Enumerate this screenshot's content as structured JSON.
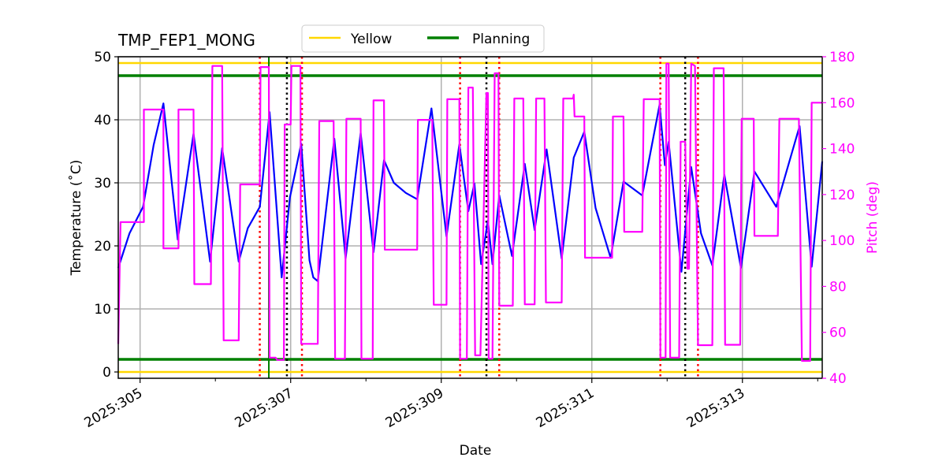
{
  "chart_data": {
    "type": "line",
    "title": "TMP_FEP1_MONG",
    "xlabel": "Date",
    "ylabel": "Temperature ($^\\circ$C)",
    "ylabel_display": "Temperature (˚C)",
    "y2label": "Pitch (deg)",
    "xlim": [
      304.71,
      314.06
    ],
    "ylim": [
      -1,
      50
    ],
    "y2lim": [
      40,
      180
    ],
    "grid": true,
    "legend_placement": "top-center",
    "x_tick_labels": [
      {
        "value": 305,
        "label": "2025:305"
      },
      {
        "value": 307,
        "label": "2025:307"
      },
      {
        "value": 309,
        "label": "2025:309"
      },
      {
        "value": 311,
        "label": "2025:311"
      },
      {
        "value": 313,
        "label": "2025:313"
      }
    ],
    "x_minor_ticks": [
      306,
      308,
      310,
      312,
      314
    ],
    "y_ticks": [
      0,
      10,
      20,
      30,
      40,
      50
    ],
    "y2_ticks": [
      40,
      60,
      80,
      100,
      120,
      140,
      160,
      180
    ],
    "legend": [
      {
        "name": "Yellow",
        "color": "#ffd700"
      },
      {
        "name": "Planning",
        "color": "#008000"
      }
    ],
    "limits": [
      {
        "name": "Yellow",
        "values": [
          49,
          0
        ],
        "color": "#ffd700"
      },
      {
        "name": "Planning",
        "values": [
          47,
          2
        ],
        "color": "#008000"
      }
    ],
    "vertical_lines": {
      "red_dotted": [
        306.59,
        307.15,
        309.25,
        309.77,
        311.91,
        312.41
      ],
      "black_dotted": [
        306.95,
        309.6,
        312.24
      ],
      "green_solid": [
        306.71
      ]
    },
    "colors": {
      "temperature": "#0000ff",
      "pitch": "#ff00ff",
      "red": "#ff0000",
      "black": "#000000",
      "green": "#008000",
      "yellow": "#ffd700",
      "grid": "#b0b0b0"
    },
    "series": [
      {
        "axis": "left",
        "color": "#0000ff",
        "points": [
          [
            304.71,
            16.5
          ],
          [
            304.86,
            22
          ],
          [
            305.04,
            26.2
          ],
          [
            305.18,
            36
          ],
          [
            305.31,
            42.6
          ],
          [
            305.5,
            21
          ],
          [
            305.71,
            37.8
          ],
          [
            305.93,
            17.5
          ],
          [
            306.09,
            35.5
          ],
          [
            306.31,
            17.5
          ],
          [
            306.43,
            22.8
          ],
          [
            306.59,
            26.2
          ],
          [
            306.72,
            41.2
          ],
          [
            306.88,
            15
          ],
          [
            306.99,
            27.7
          ],
          [
            307.14,
            36.2
          ],
          [
            307.25,
            17.7
          ],
          [
            307.3,
            15
          ],
          [
            307.36,
            14.4
          ],
          [
            307.58,
            37
          ],
          [
            307.73,
            18
          ],
          [
            307.93,
            37.9
          ],
          [
            308.1,
            19
          ],
          [
            308.24,
            33.6
          ],
          [
            308.37,
            30
          ],
          [
            308.53,
            28.4
          ],
          [
            308.68,
            27.4
          ],
          [
            308.87,
            41.8
          ],
          [
            309.07,
            21.5
          ],
          [
            309.24,
            36.1
          ],
          [
            309.36,
            25.5
          ],
          [
            309.44,
            29.9
          ],
          [
            309.53,
            17.1
          ],
          [
            309.62,
            24
          ],
          [
            309.68,
            17.1
          ],
          [
            309.77,
            28
          ],
          [
            309.94,
            18.4
          ],
          [
            310.11,
            33
          ],
          [
            310.24,
            22.5
          ],
          [
            310.4,
            35.3
          ],
          [
            310.6,
            18
          ],
          [
            310.76,
            34
          ],
          [
            310.9,
            38.1
          ],
          [
            311.05,
            26
          ],
          [
            311.25,
            18.1
          ],
          [
            311.42,
            30.2
          ],
          [
            311.67,
            28
          ],
          [
            311.9,
            42.4
          ],
          [
            311.97,
            32.8
          ],
          [
            312.02,
            36.5
          ],
          [
            312.19,
            15.9
          ],
          [
            312.32,
            32.5
          ],
          [
            312.45,
            22
          ],
          [
            312.6,
            16.9
          ],
          [
            312.76,
            31.3
          ],
          [
            312.98,
            16.5
          ],
          [
            313.16,
            31.8
          ],
          [
            313.45,
            26.2
          ],
          [
            313.76,
            39
          ],
          [
            313.92,
            16.7
          ],
          [
            314.06,
            33.4
          ]
        ]
      },
      {
        "axis": "right",
        "color": "#ff00ff",
        "points": [
          [
            304.71,
            55
          ],
          [
            304.74,
            108
          ],
          [
            305.05,
            108
          ],
          [
            305.05,
            157
          ],
          [
            305.31,
            157
          ],
          [
            305.31,
            96.6
          ],
          [
            305.51,
            96.6
          ],
          [
            305.51,
            157
          ],
          [
            305.71,
            157
          ],
          [
            305.72,
            81
          ],
          [
            305.94,
            81
          ],
          [
            305.96,
            176
          ],
          [
            306.09,
            176
          ],
          [
            306.11,
            56.5
          ],
          [
            306.31,
            56.5
          ],
          [
            306.33,
            124.4
          ],
          [
            306.59,
            124.4
          ],
          [
            306.6,
            175.5
          ],
          [
            306.71,
            175.5
          ],
          [
            306.72,
            49
          ],
          [
            306.8,
            49
          ],
          [
            306.82,
            48
          ],
          [
            306.91,
            48
          ],
          [
            306.92,
            150.5
          ],
          [
            307.0,
            150.5
          ],
          [
            307.01,
            176
          ],
          [
            307.13,
            176
          ],
          [
            307.14,
            55
          ],
          [
            307.36,
            55
          ],
          [
            307.38,
            152
          ],
          [
            307.57,
            152
          ],
          [
            307.59,
            48.5
          ],
          [
            307.72,
            48.5
          ],
          [
            307.74,
            153
          ],
          [
            307.93,
            153
          ],
          [
            307.94,
            48.5
          ],
          [
            308.09,
            48.5
          ],
          [
            308.1,
            161
          ],
          [
            308.24,
            161
          ],
          [
            308.25,
            96
          ],
          [
            308.68,
            96
          ],
          [
            308.69,
            152.5
          ],
          [
            308.88,
            152.5
          ],
          [
            308.9,
            72
          ],
          [
            309.07,
            72
          ],
          [
            309.08,
            161.5
          ],
          [
            309.24,
            161.5
          ],
          [
            309.25,
            48.5
          ],
          [
            309.34,
            48.5
          ],
          [
            309.36,
            166.6
          ],
          [
            309.42,
            166.6
          ],
          [
            309.45,
            50
          ],
          [
            309.52,
            50
          ],
          [
            309.6,
            164.2
          ],
          [
            309.62,
            164.2
          ],
          [
            309.63,
            48.5
          ],
          [
            309.68,
            48.5
          ],
          [
            309.71,
            172.8
          ],
          [
            309.76,
            172.8
          ],
          [
            309.77,
            71.6
          ],
          [
            309.95,
            71.6
          ],
          [
            309.97,
            161.8
          ],
          [
            310.09,
            161.8
          ],
          [
            310.11,
            72.2
          ],
          [
            310.24,
            72.2
          ],
          [
            310.26,
            161.8
          ],
          [
            310.37,
            161.8
          ],
          [
            310.39,
            73
          ],
          [
            310.6,
            73
          ],
          [
            310.62,
            161.8
          ],
          [
            310.75,
            161.8
          ],
          [
            310.76,
            163.5
          ],
          [
            310.77,
            154
          ],
          [
            310.9,
            154
          ],
          [
            310.91,
            92.5
          ],
          [
            311.27,
            92.5
          ],
          [
            311.28,
            154
          ],
          [
            311.42,
            154
          ],
          [
            311.43,
            103.8
          ],
          [
            311.67,
            103.8
          ],
          [
            311.69,
            161.5
          ],
          [
            311.9,
            161.5
          ],
          [
            311.91,
            49
          ],
          [
            311.98,
            49
          ],
          [
            311.99,
            177
          ],
          [
            312.02,
            177
          ],
          [
            312.04,
            49
          ],
          [
            312.16,
            49
          ],
          [
            312.18,
            143
          ],
          [
            312.24,
            143
          ],
          [
            312.27,
            87.7
          ],
          [
            312.29,
            87.7
          ],
          [
            312.32,
            177
          ],
          [
            312.37,
            176
          ],
          [
            312.41,
            54.4
          ],
          [
            312.6,
            54.4
          ],
          [
            312.62,
            175
          ],
          [
            312.75,
            175
          ],
          [
            312.77,
            54.6
          ],
          [
            312.97,
            54.6
          ],
          [
            312.99,
            153
          ],
          [
            313.15,
            153
          ],
          [
            313.16,
            102
          ],
          [
            313.47,
            102
          ],
          [
            313.49,
            153
          ],
          [
            313.75,
            153
          ],
          [
            313.79,
            47.6
          ],
          [
            313.9,
            47.6
          ],
          [
            313.92,
            160
          ],
          [
            314.06,
            160
          ]
        ]
      }
    ]
  }
}
